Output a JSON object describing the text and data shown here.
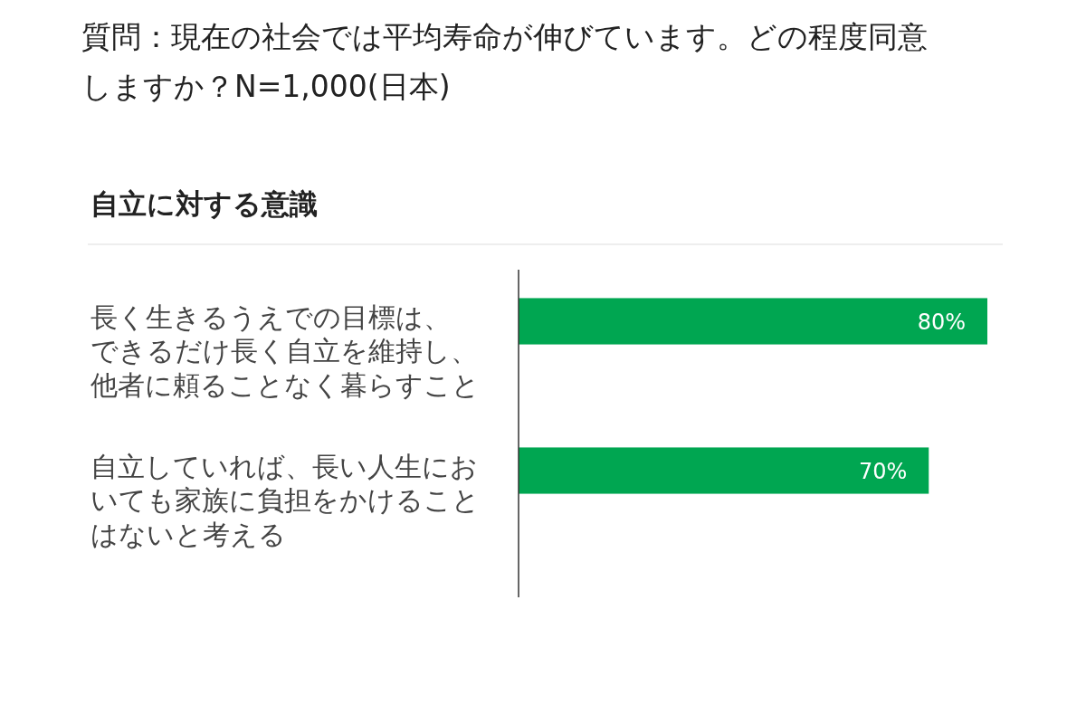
{
  "chart_data": {
    "type": "bar",
    "orientation": "horizontal",
    "title": "質問：現在の社会では平均寿命が伸びています。どの程度同意しますか？N=1,000(日本)",
    "subtitle": "自立に対する意識",
    "categories": [
      "長く生きるうえでの目標は、できるだけ長く自立を維持し、他者に頼ることなく暮らすこと",
      "自立していれば、長い人生においても家族に負担をかけることはないと考える"
    ],
    "values": [
      80,
      70
    ],
    "color": "#00a651",
    "value_labels": [
      "80%",
      "70%"
    ]
  }
}
